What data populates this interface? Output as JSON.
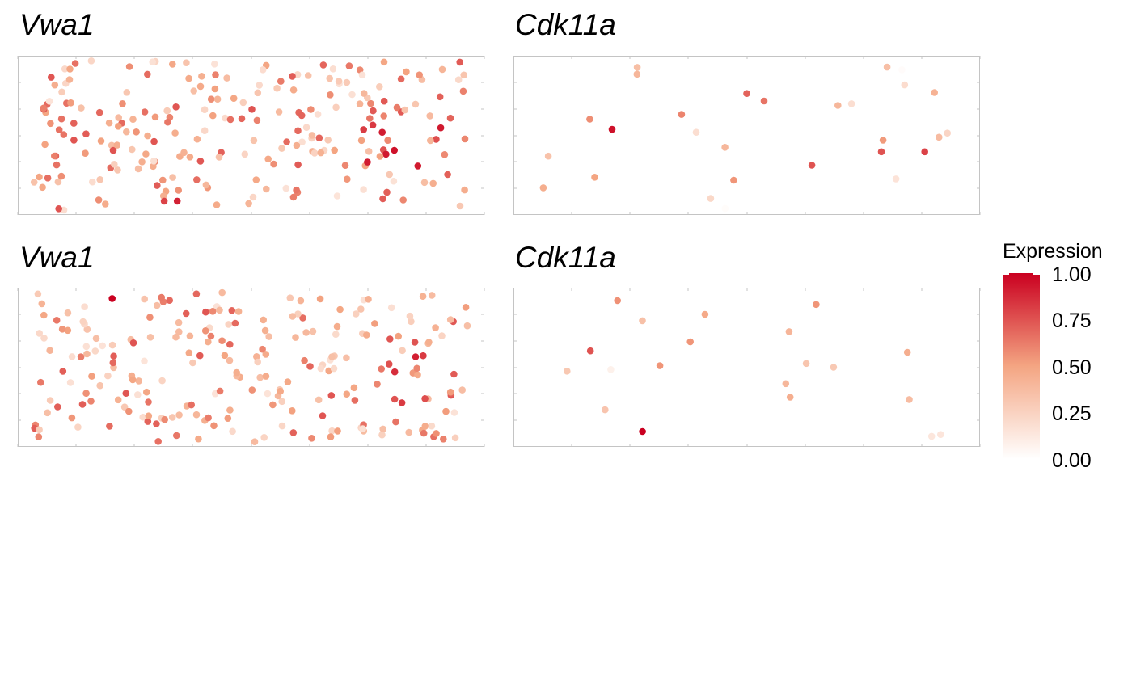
{
  "chart_data": [
    {
      "type": "scatter",
      "title": "Vwa1",
      "seed": 11,
      "n_points": 230,
      "extent": {
        "x": [
          0.0,
          1.0
        ],
        "y": [
          0.0,
          1.0
        ]
      },
      "hotspots": [
        {
          "x": 0.83,
          "y": 0.4,
          "value": 0.95
        },
        {
          "x": 0.33,
          "y": 0.06,
          "value": 0.9
        },
        {
          "x": 0.3,
          "y": 0.06,
          "value": 0.8
        }
      ]
    },
    {
      "type": "scatter",
      "title": "Cdk11a",
      "seed": 29,
      "n_points": 28,
      "extent": {
        "x": [
          0.0,
          1.0
        ],
        "y": [
          0.0,
          1.0
        ]
      },
      "points": [
        {
          "x": 0.5,
          "y": 0.78,
          "value": 0.7
        },
        {
          "x": 0.54,
          "y": 0.73,
          "value": 0.65
        },
        {
          "x": 0.35,
          "y": 0.64,
          "value": 0.6
        },
        {
          "x": 0.19,
          "y": 0.54,
          "value": 0.95
        },
        {
          "x": 0.65,
          "y": 0.3,
          "value": 0.75
        },
        {
          "x": 0.81,
          "y": 0.39,
          "value": 0.75
        },
        {
          "x": 0.91,
          "y": 0.39,
          "value": 0.8
        },
        {
          "x": 0.45,
          "y": 0.42,
          "value": 0.4
        },
        {
          "x": 0.71,
          "y": 0.7,
          "value": 0.4
        },
        {
          "x": 0.15,
          "y": 0.22,
          "value": 0.5
        },
        {
          "x": 0.47,
          "y": 0.2,
          "value": 0.55
        }
      ]
    },
    {
      "type": "scatter",
      "title": "Vwa1",
      "seed": 47,
      "n_points": 230,
      "extent": {
        "x": [
          0.0,
          1.0
        ],
        "y": [
          0.0,
          1.0
        ]
      },
      "hotspots": [
        {
          "x": 0.18,
          "y": 0.96,
          "value": 1.0
        }
      ]
    },
    {
      "type": "scatter",
      "title": "Cdk11a",
      "seed": 61,
      "n_points": 20,
      "extent": {
        "x": [
          0.0,
          1.0
        ],
        "y": [
          0.0,
          1.0
        ]
      },
      "points": [
        {
          "x": 0.66,
          "y": 0.92,
          "value": 0.55
        },
        {
          "x": 0.14,
          "y": 0.61,
          "value": 0.75
        },
        {
          "x": 0.3,
          "y": 0.51,
          "value": 0.55
        },
        {
          "x": 0.37,
          "y": 0.67,
          "value": 0.55
        },
        {
          "x": 0.59,
          "y": 0.39,
          "value": 0.4
        },
        {
          "x": 0.7,
          "y": 0.5,
          "value": 0.3
        },
        {
          "x": 0.6,
          "y": 0.3,
          "value": 0.45
        },
        {
          "x": 0.87,
          "y": 0.6,
          "value": 0.45
        },
        {
          "x": 0.26,
          "y": 0.07,
          "value": 1.0
        }
      ]
    }
  ],
  "legend": {
    "title": "Expression",
    "ticks": [
      "1.00",
      "0.75",
      "0.50",
      "0.25",
      "0.00"
    ],
    "colors": {
      "low": "#ffffff",
      "mid": "#f4a582",
      "high": "#ca0020"
    },
    "range": [
      0.0,
      1.0
    ]
  }
}
